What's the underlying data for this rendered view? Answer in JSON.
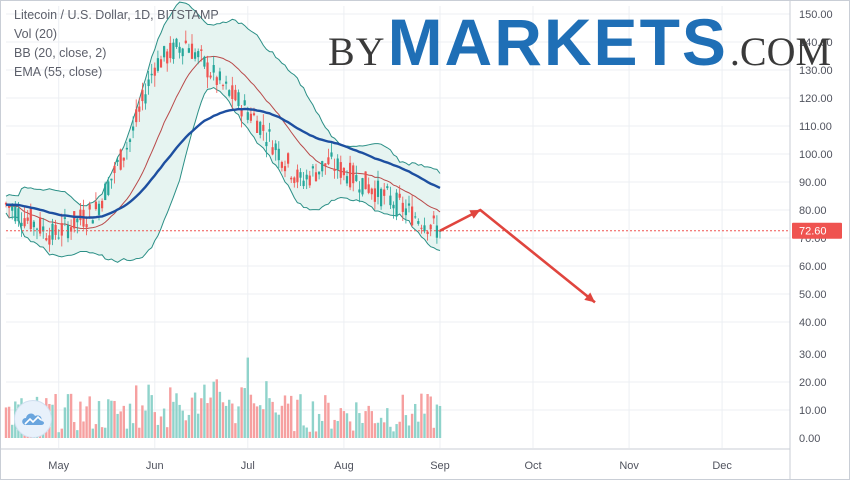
{
  "legend": {
    "title": "Litecoin / U.S. Dollar, 1D, BITSTAMP",
    "vol": "Vol (20)",
    "bb": "BB (20, close, 2)",
    "ema": "EMA (55, close)"
  },
  "watermark": {
    "by": "BY",
    "markets": "MARKETS",
    "com": ".COM"
  },
  "logo_icon": "tradingview-cloud-icon",
  "colors": {
    "up": "#26a69a",
    "down": "#ef5350",
    "vol_up": "#8fd3cb",
    "vol_down": "#f6a0a0",
    "bb_fill": "#e6f4f1",
    "bb_line": "#2b8f86",
    "bb_mid": "#b94a4a",
    "ema": "#1d4fa0",
    "arrow": "#e0453e",
    "price_tag": "#ef5350",
    "grid": "#eceff3",
    "axis_text": "#50535e"
  },
  "chart_data": {
    "type": "candlestick",
    "y_ticks": [
      "150.00",
      "140.00",
      "130.00",
      "120.00",
      "110.00",
      "100.00",
      "90.00",
      "80.00",
      "70.00",
      "60.00",
      "50.00",
      "40.00"
    ],
    "vol_ticks": [
      "30.00",
      "20.00",
      "10.00",
      "0.00"
    ],
    "ylim": [
      30,
      150
    ],
    "vol_lim": [
      0,
      37
    ],
    "x_labels": [
      "May",
      "Jun",
      "Jul",
      "Aug",
      "Sep",
      "Oct",
      "Nov",
      "Dec"
    ],
    "last_price": "72.60",
    "series": [
      {
        "name": "Vol (20)",
        "type": "volume"
      },
      {
        "name": "BB (20, close, 2)",
        "type": "band"
      },
      {
        "name": "EMA (55, close)",
        "type": "line"
      }
    ],
    "close_path_approx": {
      "days": [
        0,
        15,
        29,
        40,
        48,
        58,
        70,
        81,
        95,
        104,
        115,
        129,
        140
      ],
      "close": [
        82,
        71,
        80,
        105,
        132,
        140,
        124,
        112,
        90,
        97,
        90,
        80,
        72.6
      ]
    },
    "forecast_arrow": {
      "points": [
        [
          "2019-08-24",
          72.6
        ],
        [
          "2019-08-29",
          80
        ],
        [
          "2019-09-24",
          47
        ]
      ]
    }
  }
}
